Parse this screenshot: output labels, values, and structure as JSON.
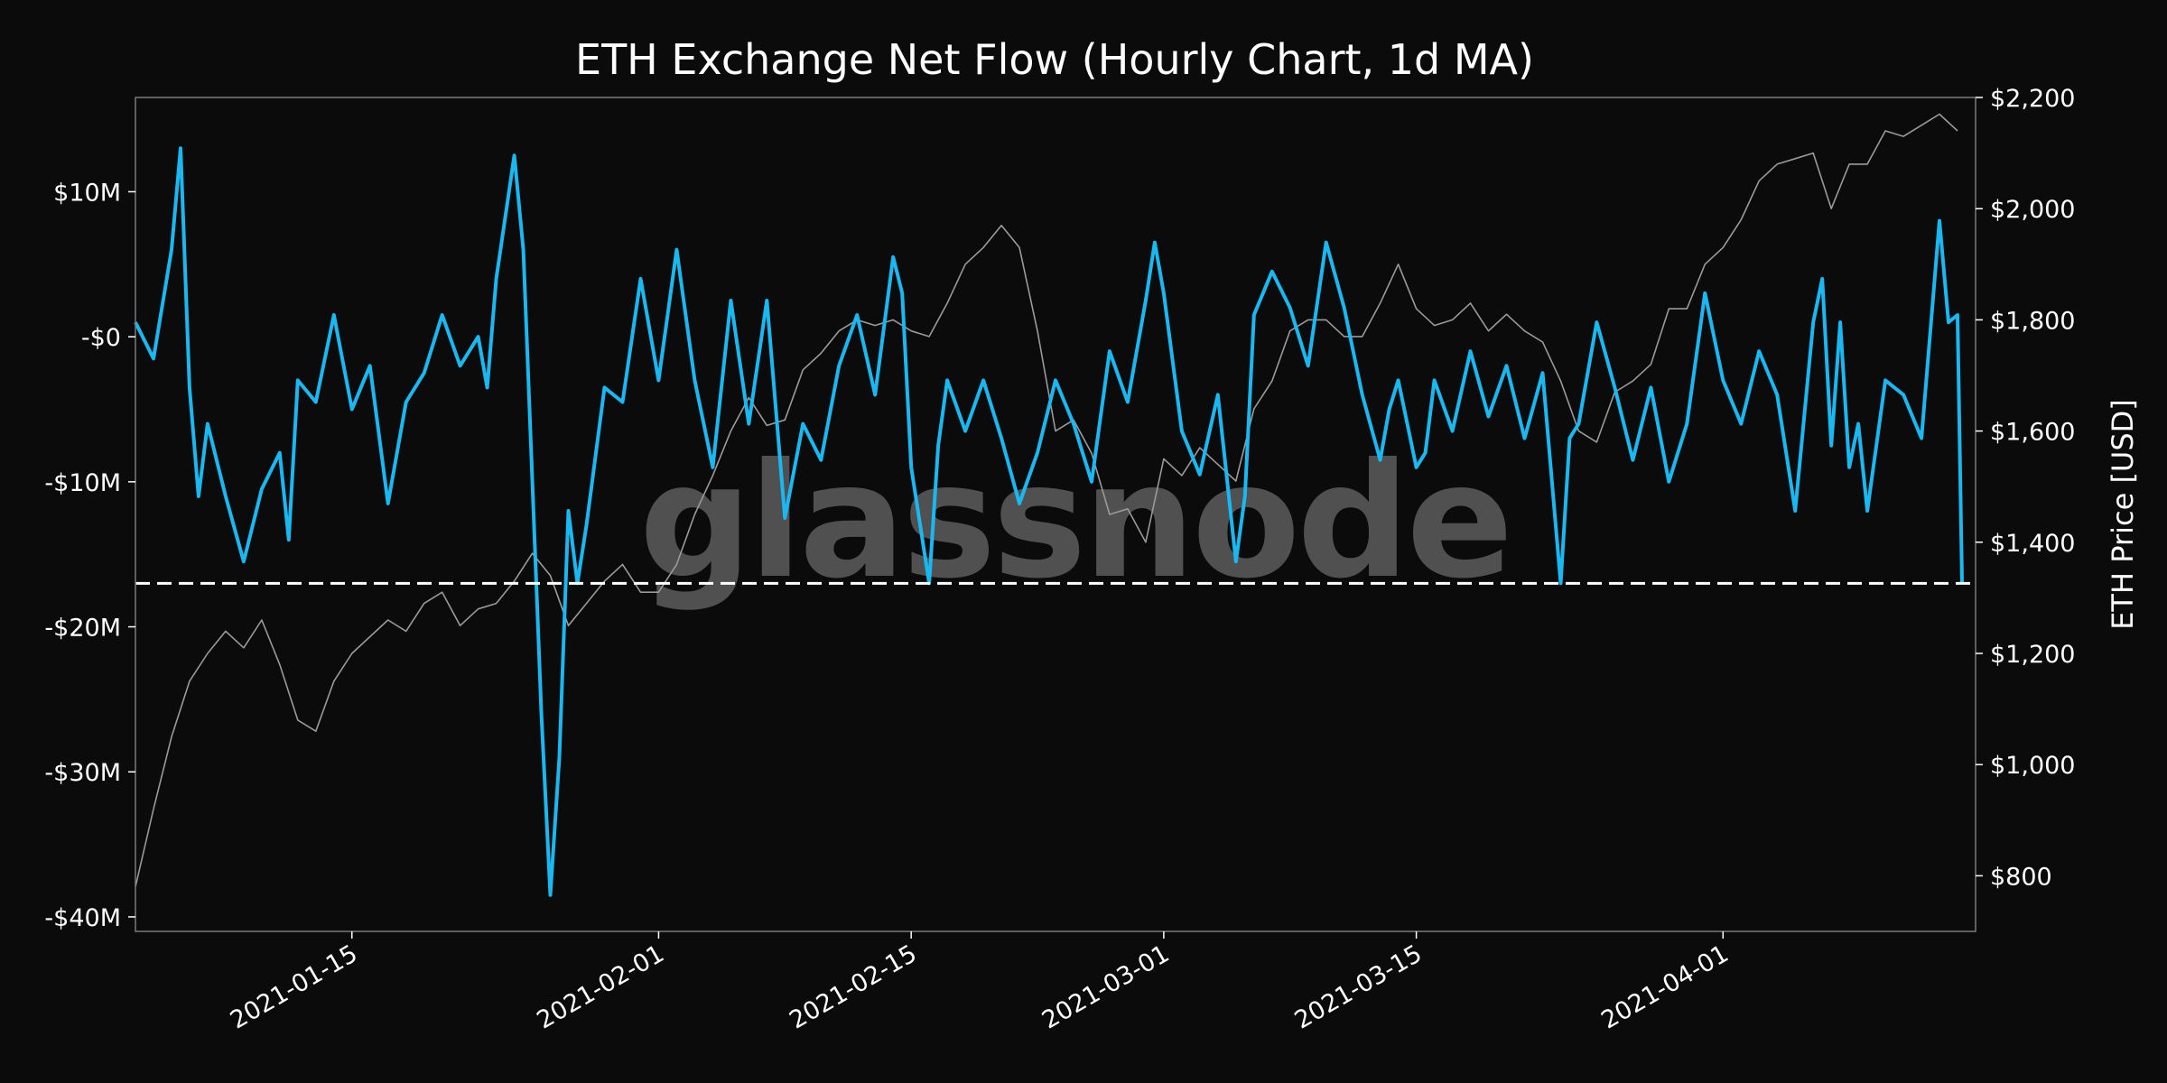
{
  "chart_data": {
    "type": "line",
    "title": "ETH Exchange Net Flow (Hourly Chart, 1d MA)",
    "watermark": "glassnode",
    "x_range": [
      "2021-01-03",
      "2021-04-15"
    ],
    "x_ticks": [
      "2021-01-15",
      "2021-02-01",
      "2021-02-15",
      "2021-03-01",
      "2021-03-15",
      "2021-04-01"
    ],
    "y_left": {
      "label": "",
      "range": [
        -41000000,
        16500000
      ],
      "ticks": [
        10000000,
        0,
        -10000000,
        -20000000,
        -30000000,
        -40000000
      ],
      "tick_labels": [
        "$10M",
        "-$0",
        "-$10M",
        "-$20M",
        "-$30M",
        "-$40M"
      ]
    },
    "y_right": {
      "label": "ETH Price [USD]",
      "range": [
        700,
        2200
      ],
      "ticks": [
        2200,
        2000,
        1800,
        1600,
        1400,
        1200,
        1000,
        800
      ],
      "tick_labels": [
        "$2,200",
        "$2,000",
        "$1,800",
        "$1,600",
        "$1,400",
        "$1,200",
        "$1,000",
        "$800"
      ]
    },
    "reference_line": {
      "value": -17000000,
      "style": "dashed",
      "color": "#ffffff"
    },
    "grid": false,
    "series": [
      {
        "axis": "left",
        "color": "#1ab8f0",
        "points": [
          [
            "2021-01-03",
            1000000
          ],
          [
            "2021-01-04",
            -1500000
          ],
          [
            "2021-01-05",
            6000000
          ],
          [
            "2021-01-05 12:00",
            13000000
          ],
          [
            "2021-01-06",
            -3500000
          ],
          [
            "2021-01-06 12:00",
            -11000000
          ],
          [
            "2021-01-07",
            -6000000
          ],
          [
            "2021-01-08",
            -11000000
          ],
          [
            "2021-01-09",
            -15500000
          ],
          [
            "2021-01-10",
            -10500000
          ],
          [
            "2021-01-11",
            -8000000
          ],
          [
            "2021-01-11 12:00",
            -14000000
          ],
          [
            "2021-01-12",
            -3000000
          ],
          [
            "2021-01-13",
            -4500000
          ],
          [
            "2021-01-14",
            1500000
          ],
          [
            "2021-01-15",
            -5000000
          ],
          [
            "2021-01-16",
            -2000000
          ],
          [
            "2021-01-17",
            -11500000
          ],
          [
            "2021-01-18",
            -4500000
          ],
          [
            "2021-01-19",
            -2500000
          ],
          [
            "2021-01-20",
            1500000
          ],
          [
            "2021-01-21",
            -2000000
          ],
          [
            "2021-01-22",
            0
          ],
          [
            "2021-01-22 12:00",
            -3500000
          ],
          [
            "2021-01-23",
            4000000
          ],
          [
            "2021-01-24",
            12500000
          ],
          [
            "2021-01-24 12:00",
            6000000
          ],
          [
            "2021-01-25",
            -10000000
          ],
          [
            "2021-01-25 12:00",
            -26000000
          ],
          [
            "2021-01-26",
            -38500000
          ],
          [
            "2021-01-26 12:00",
            -29000000
          ],
          [
            "2021-01-27",
            -12000000
          ],
          [
            "2021-01-27 12:00",
            -17000000
          ],
          [
            "2021-01-28",
            -13000000
          ],
          [
            "2021-01-29",
            -3500000
          ],
          [
            "2021-01-30",
            -4500000
          ],
          [
            "2021-01-31",
            4000000
          ],
          [
            "2021-02-01",
            -3000000
          ],
          [
            "2021-02-02",
            6000000
          ],
          [
            "2021-02-03",
            -3000000
          ],
          [
            "2021-02-04",
            -9000000
          ],
          [
            "2021-02-05",
            2500000
          ],
          [
            "2021-02-06",
            -6000000
          ],
          [
            "2021-02-07",
            2500000
          ],
          [
            "2021-02-08",
            -12500000
          ],
          [
            "2021-02-09",
            -6000000
          ],
          [
            "2021-02-10",
            -8500000
          ],
          [
            "2021-02-11",
            -2000000
          ],
          [
            "2021-02-12",
            1500000
          ],
          [
            "2021-02-13",
            -4000000
          ],
          [
            "2021-02-14",
            5500000
          ],
          [
            "2021-02-14 12:00",
            3000000
          ],
          [
            "2021-02-15",
            -9000000
          ],
          [
            "2021-02-16",
            -17000000
          ],
          [
            "2021-02-16 12:00",
            -7500000
          ],
          [
            "2021-02-17",
            -3000000
          ],
          [
            "2021-02-18",
            -6500000
          ],
          [
            "2021-02-19",
            -3000000
          ],
          [
            "2021-02-20",
            -7000000
          ],
          [
            "2021-02-21",
            -11500000
          ],
          [
            "2021-02-22",
            -8000000
          ],
          [
            "2021-02-23",
            -3000000
          ],
          [
            "2021-02-24",
            -6000000
          ],
          [
            "2021-02-25",
            -10000000
          ],
          [
            "2021-02-26",
            -1000000
          ],
          [
            "2021-02-27",
            -4500000
          ],
          [
            "2021-02-28",
            2500000
          ],
          [
            "2021-02-28 12:00",
            6500000
          ],
          [
            "2021-03-01",
            3000000
          ],
          [
            "2021-03-02",
            -6500000
          ],
          [
            "2021-03-03",
            -9500000
          ],
          [
            "2021-03-04",
            -4000000
          ],
          [
            "2021-03-05",
            -15500000
          ],
          [
            "2021-03-05 12:00",
            -11000000
          ],
          [
            "2021-03-06",
            1500000
          ],
          [
            "2021-03-07",
            4500000
          ],
          [
            "2021-03-08",
            2000000
          ],
          [
            "2021-03-09",
            -2000000
          ],
          [
            "2021-03-10",
            6500000
          ],
          [
            "2021-03-11",
            2000000
          ],
          [
            "2021-03-12",
            -4000000
          ],
          [
            "2021-03-13",
            -8500000
          ],
          [
            "2021-03-13 12:00",
            -5000000
          ],
          [
            "2021-03-14",
            -3000000
          ],
          [
            "2021-03-15",
            -9000000
          ],
          [
            "2021-03-15 12:00",
            -8000000
          ],
          [
            "2021-03-16",
            -3000000
          ],
          [
            "2021-03-17",
            -6500000
          ],
          [
            "2021-03-18",
            -1000000
          ],
          [
            "2021-03-19",
            -5500000
          ],
          [
            "2021-03-20",
            -2000000
          ],
          [
            "2021-03-21",
            -7000000
          ],
          [
            "2021-03-22",
            -2500000
          ],
          [
            "2021-03-23",
            -17000000
          ],
          [
            "2021-03-23 12:00",
            -7000000
          ],
          [
            "2021-03-24",
            -6000000
          ],
          [
            "2021-03-25",
            1000000
          ],
          [
            "2021-03-26",
            -3500000
          ],
          [
            "2021-03-27",
            -8500000
          ],
          [
            "2021-03-28",
            -3500000
          ],
          [
            "2021-03-29",
            -10000000
          ],
          [
            "2021-03-30",
            -6000000
          ],
          [
            "2021-03-31",
            3000000
          ],
          [
            "2021-04-01",
            -3000000
          ],
          [
            "2021-04-02",
            -6000000
          ],
          [
            "2021-04-03",
            -1000000
          ],
          [
            "2021-04-04",
            -4000000
          ],
          [
            "2021-04-05",
            -12000000
          ],
          [
            "2021-04-06",
            1000000
          ],
          [
            "2021-04-06 12:00",
            4000000
          ],
          [
            "2021-04-07",
            -7500000
          ],
          [
            "2021-04-07 12:00",
            1000000
          ],
          [
            "2021-04-08",
            -9000000
          ],
          [
            "2021-04-08 12:00",
            -6000000
          ],
          [
            "2021-04-09",
            -12000000
          ],
          [
            "2021-04-10",
            -3000000
          ],
          [
            "2021-04-11",
            -4000000
          ],
          [
            "2021-04-12",
            -7000000
          ],
          [
            "2021-04-13",
            8000000
          ],
          [
            "2021-04-13 12:00",
            1000000
          ],
          [
            "2021-04-14",
            1500000
          ],
          [
            "2021-04-14 06:00",
            -17000000
          ]
        ]
      },
      {
        "axis": "right",
        "color": "#9a9a9a",
        "points": [
          [
            "2021-01-03",
            780
          ],
          [
            "2021-01-04",
            920
          ],
          [
            "2021-01-05",
            1050
          ],
          [
            "2021-01-06",
            1150
          ],
          [
            "2021-01-07",
            1200
          ],
          [
            "2021-01-08",
            1240
          ],
          [
            "2021-01-09",
            1210
          ],
          [
            "2021-01-10",
            1260
          ],
          [
            "2021-01-11",
            1180
          ],
          [
            "2021-01-12",
            1080
          ],
          [
            "2021-01-13",
            1060
          ],
          [
            "2021-01-14",
            1150
          ],
          [
            "2021-01-15",
            1200
          ],
          [
            "2021-01-16",
            1230
          ],
          [
            "2021-01-17",
            1260
          ],
          [
            "2021-01-18",
            1240
          ],
          [
            "2021-01-19",
            1290
          ],
          [
            "2021-01-20",
            1310
          ],
          [
            "2021-01-21",
            1250
          ],
          [
            "2021-01-22",
            1280
          ],
          [
            "2021-01-23",
            1290
          ],
          [
            "2021-01-24",
            1330
          ],
          [
            "2021-01-25",
            1380
          ],
          [
            "2021-01-26",
            1340
          ],
          [
            "2021-01-27",
            1250
          ],
          [
            "2021-01-28",
            1290
          ],
          [
            "2021-01-29",
            1330
          ],
          [
            "2021-01-30",
            1360
          ],
          [
            "2021-01-31",
            1310
          ],
          [
            "2021-02-01",
            1310
          ],
          [
            "2021-02-02",
            1360
          ],
          [
            "2021-02-03",
            1450
          ],
          [
            "2021-02-04",
            1520
          ],
          [
            "2021-02-05",
            1600
          ],
          [
            "2021-02-06",
            1660
          ],
          [
            "2021-02-07",
            1610
          ],
          [
            "2021-02-08",
            1620
          ],
          [
            "2021-02-09",
            1710
          ],
          [
            "2021-02-10",
            1740
          ],
          [
            "2021-02-11",
            1780
          ],
          [
            "2021-02-12",
            1800
          ],
          [
            "2021-02-13",
            1790
          ],
          [
            "2021-02-14",
            1800
          ],
          [
            "2021-02-15",
            1780
          ],
          [
            "2021-02-16",
            1770
          ],
          [
            "2021-02-17",
            1830
          ],
          [
            "2021-02-18",
            1900
          ],
          [
            "2021-02-19",
            1930
          ],
          [
            "2021-02-20",
            1970
          ],
          [
            "2021-02-21",
            1930
          ],
          [
            "2021-02-22",
            1780
          ],
          [
            "2021-02-23",
            1600
          ],
          [
            "2021-02-24",
            1620
          ],
          [
            "2021-02-25",
            1560
          ],
          [
            "2021-02-26",
            1450
          ],
          [
            "2021-02-27",
            1460
          ],
          [
            "2021-02-28",
            1400
          ],
          [
            "2021-03-01",
            1550
          ],
          [
            "2021-03-02",
            1520
          ],
          [
            "2021-03-03",
            1570
          ],
          [
            "2021-03-04",
            1540
          ],
          [
            "2021-03-05",
            1510
          ],
          [
            "2021-03-06",
            1640
          ],
          [
            "2021-03-07",
            1690
          ],
          [
            "2021-03-08",
            1780
          ],
          [
            "2021-03-09",
            1800
          ],
          [
            "2021-03-10",
            1800
          ],
          [
            "2021-03-11",
            1770
          ],
          [
            "2021-03-12",
            1770
          ],
          [
            "2021-03-13",
            1830
          ],
          [
            "2021-03-14",
            1900
          ],
          [
            "2021-03-15",
            1820
          ],
          [
            "2021-03-16",
            1790
          ],
          [
            "2021-03-17",
            1800
          ],
          [
            "2021-03-18",
            1830
          ],
          [
            "2021-03-19",
            1780
          ],
          [
            "2021-03-20",
            1810
          ],
          [
            "2021-03-21",
            1780
          ],
          [
            "2021-03-22",
            1760
          ],
          [
            "2021-03-23",
            1690
          ],
          [
            "2021-03-24",
            1600
          ],
          [
            "2021-03-25",
            1580
          ],
          [
            "2021-03-26",
            1670
          ],
          [
            "2021-03-27",
            1690
          ],
          [
            "2021-03-28",
            1720
          ],
          [
            "2021-03-29",
            1820
          ],
          [
            "2021-03-30",
            1820
          ],
          [
            "2021-03-31",
            1900
          ],
          [
            "2021-04-01",
            1930
          ],
          [
            "2021-04-02",
            1980
          ],
          [
            "2021-04-03",
            2050
          ],
          [
            "2021-04-04",
            2080
          ],
          [
            "2021-04-05",
            2090
          ],
          [
            "2021-04-06",
            2100
          ],
          [
            "2021-04-07",
            2000
          ],
          [
            "2021-04-08",
            2080
          ],
          [
            "2021-04-09",
            2080
          ],
          [
            "2021-04-10",
            2140
          ],
          [
            "2021-04-11",
            2130
          ],
          [
            "2021-04-12",
            2150
          ],
          [
            "2021-04-13",
            2170
          ],
          [
            "2021-04-14",
            2140
          ]
        ]
      }
    ]
  }
}
